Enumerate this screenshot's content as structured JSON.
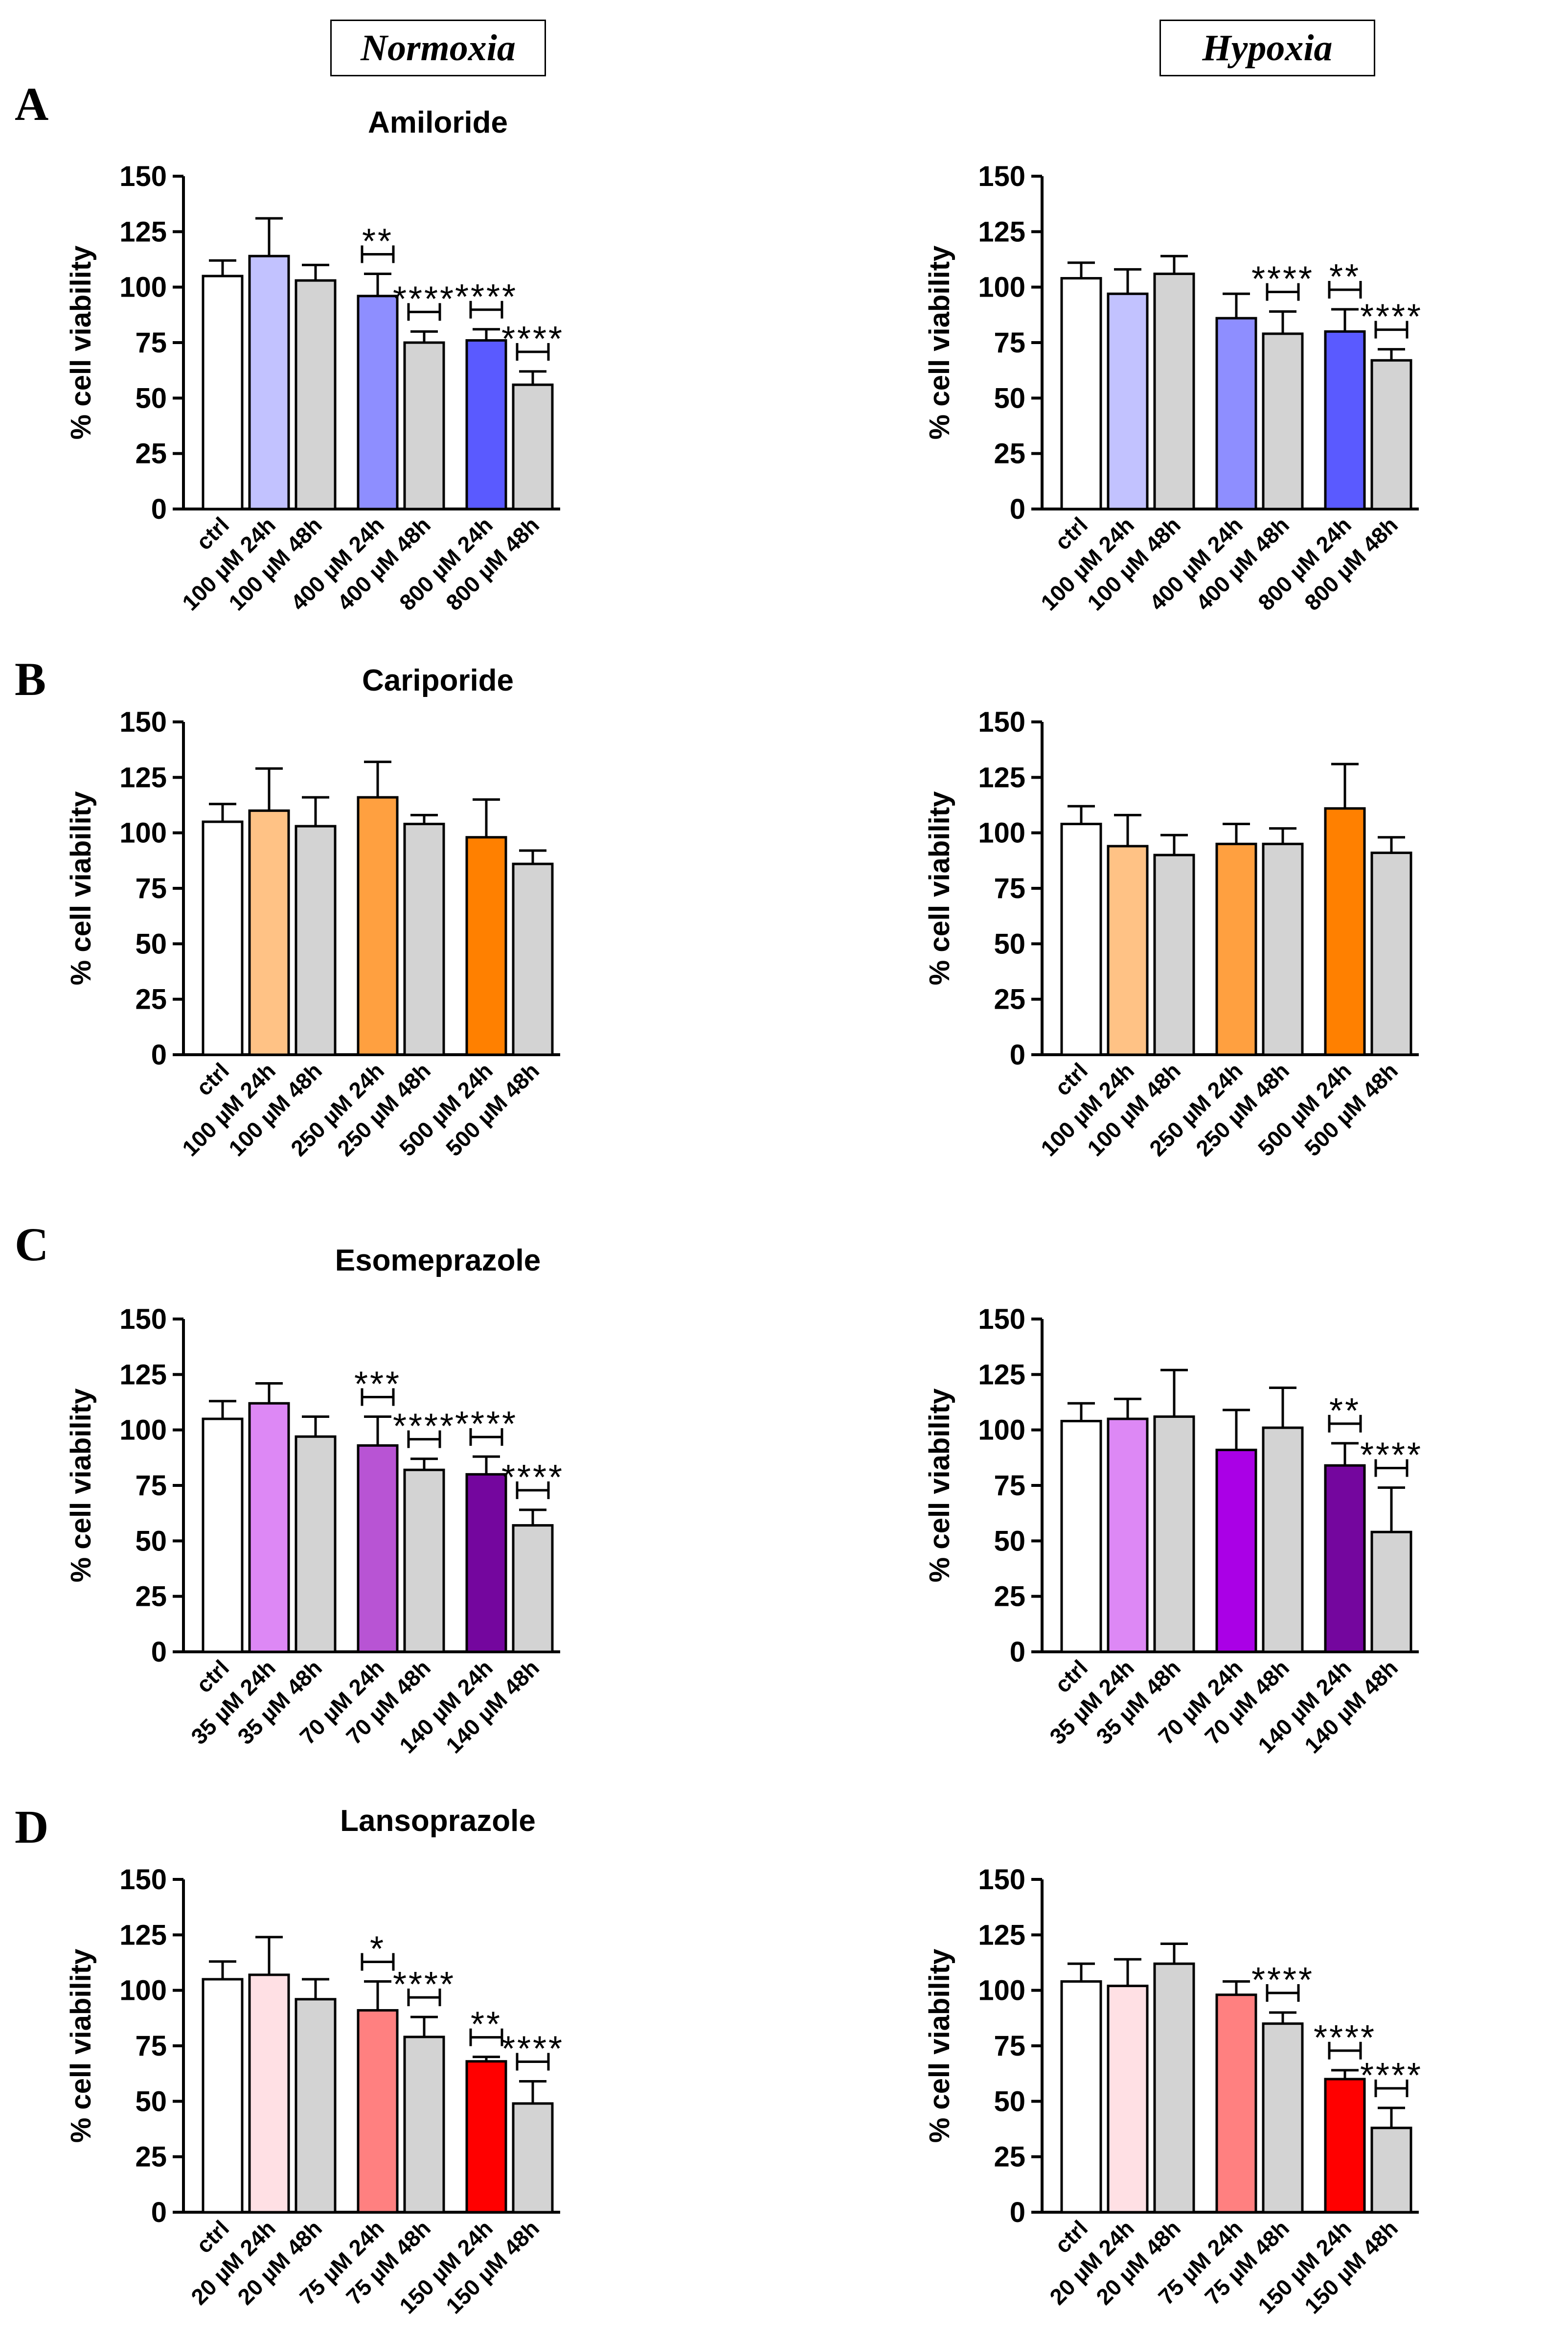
{
  "headers": {
    "normoxia": "Normoxia",
    "hypoxia": "Hypoxia"
  },
  "panels": [
    {
      "letter": "A",
      "title": "Amiloride"
    },
    {
      "letter": "B",
      "title": "Cariporide"
    },
    {
      "letter": "C",
      "title": "Esomeprazole"
    },
    {
      "letter": "D",
      "title": "Lansoprazole"
    }
  ],
  "chart_data": [
    {
      "type": "bar",
      "panel": "A",
      "condition": "Normoxia",
      "title": "Amiloride",
      "ylabel": "% cell viability",
      "ylim": [
        0,
        150
      ],
      "yticks": [
        0,
        25,
        50,
        75,
        100,
        125,
        150
      ],
      "categories": [
        "ctrl",
        "100 µM 24h",
        "100 µM 48h",
        "400 µM 24h",
        "400 µM 48h",
        "800 µM 24h",
        "800 µM 48h"
      ],
      "values": [
        105,
        114,
        103,
        96,
        75,
        76,
        56
      ],
      "errors": [
        7,
        17,
        7,
        10,
        5,
        5,
        6
      ],
      "colors": [
        "#ffffff",
        "#c2c2ff",
        "#d3d3d3",
        "#8e8eff",
        "#d3d3d3",
        "#5a5aff",
        "#d3d3d3"
      ],
      "significance": [
        {
          "bar": 3,
          "label": "**"
        },
        {
          "bar": 4,
          "label": "****"
        },
        {
          "bar": 5,
          "label": "****"
        },
        {
          "bar": 6,
          "label": "****"
        }
      ]
    },
    {
      "type": "bar",
      "panel": "A",
      "condition": "Hypoxia",
      "title": "",
      "ylabel": "% cell viability",
      "ylim": [
        0,
        150
      ],
      "yticks": [
        0,
        25,
        50,
        75,
        100,
        125,
        150
      ],
      "categories": [
        "ctrl",
        "100 µM 24h",
        "100 µM 48h",
        "400 µM 24h",
        "400 µM 48h",
        "800 µM 24h",
        "800 µM 48h"
      ],
      "values": [
        104,
        97,
        106,
        86,
        79,
        80,
        67
      ],
      "errors": [
        7,
        11,
        8,
        11,
        10,
        10,
        5
      ],
      "colors": [
        "#ffffff",
        "#c2c2ff",
        "#d3d3d3",
        "#8e8eff",
        "#d3d3d3",
        "#5a5aff",
        "#d3d3d3"
      ],
      "significance": [
        {
          "bar": 4,
          "label": "****"
        },
        {
          "bar": 5,
          "label": "**"
        },
        {
          "bar": 6,
          "label": "****"
        }
      ]
    },
    {
      "type": "bar",
      "panel": "B",
      "condition": "Normoxia",
      "title": "Cariporide",
      "ylabel": "% cell viability",
      "ylim": [
        0,
        150
      ],
      "yticks": [
        0,
        25,
        50,
        75,
        100,
        125,
        150
      ],
      "categories": [
        "ctrl",
        "100 µM 24h",
        "100 µM 48h",
        "250 µM 24h",
        "250 µM 48h",
        "500 µM 24h",
        "500 µM 48h"
      ],
      "values": [
        105,
        110,
        103,
        116,
        104,
        98,
        86
      ],
      "errors": [
        8,
        19,
        13,
        16,
        4,
        17,
        6
      ],
      "colors": [
        "#ffffff",
        "#ffc285",
        "#d3d3d3",
        "#ffa040",
        "#d3d3d3",
        "#ff8000",
        "#d3d3d3"
      ],
      "significance": []
    },
    {
      "type": "bar",
      "panel": "B",
      "condition": "Hypoxia",
      "title": "",
      "ylabel": "% cell viability",
      "ylim": [
        0,
        150
      ],
      "yticks": [
        0,
        25,
        50,
        75,
        100,
        125,
        150
      ],
      "categories": [
        "ctrl",
        "100 µM 24h",
        "100 µM 48h",
        "250 µM 24h",
        "250 µM 48h",
        "500 µM 24h",
        "500 µM 48h"
      ],
      "values": [
        104,
        94,
        90,
        95,
        95,
        111,
        91
      ],
      "errors": [
        8,
        14,
        9,
        9,
        7,
        20,
        7
      ],
      "colors": [
        "#ffffff",
        "#ffc285",
        "#d3d3d3",
        "#ffa040",
        "#d3d3d3",
        "#ff8000",
        "#d3d3d3"
      ],
      "significance": []
    },
    {
      "type": "bar",
      "panel": "C",
      "condition": "Normoxia",
      "title": "Esomeprazole",
      "ylabel": "% cell viability",
      "ylim": [
        0,
        150
      ],
      "yticks": [
        0,
        25,
        50,
        75,
        100,
        125,
        150
      ],
      "categories": [
        "ctrl",
        "35 µM 24h",
        "35 µM 48h",
        "70 µM 24h",
        "70 µM 48h",
        "140 µM 24h",
        "140 µM 48h"
      ],
      "values": [
        105,
        112,
        97,
        93,
        82,
        80,
        57
      ],
      "errors": [
        8,
        9,
        9,
        13,
        5,
        8,
        7
      ],
      "colors": [
        "#ffffff",
        "#dd88f5",
        "#d3d3d3",
        "#b854d4",
        "#d3d3d3",
        "#74069e",
        "#d3d3d3"
      ],
      "significance": [
        {
          "bar": 3,
          "label": "***"
        },
        {
          "bar": 4,
          "label": "****"
        },
        {
          "bar": 5,
          "label": "****"
        },
        {
          "bar": 6,
          "label": "****"
        }
      ]
    },
    {
      "type": "bar",
      "panel": "C",
      "condition": "Hypoxia",
      "title": "",
      "ylabel": "% cell viability",
      "ylim": [
        0,
        150
      ],
      "yticks": [
        0,
        25,
        50,
        75,
        100,
        125,
        150
      ],
      "categories": [
        "ctrl",
        "35 µM 24h",
        "35 µM 48h",
        "70 µM 24h",
        "70 µM 48h",
        "140 µM 24h",
        "140 µM 48h"
      ],
      "values": [
        104,
        105,
        106,
        91,
        101,
        84,
        54
      ],
      "errors": [
        8,
        9,
        21,
        18,
        18,
        10,
        20
      ],
      "colors": [
        "#ffffff",
        "#dd88f5",
        "#d3d3d3",
        "#aa00e6",
        "#d3d3d3",
        "#74069e",
        "#d3d3d3"
      ],
      "significance": [
        {
          "bar": 5,
          "label": "**"
        },
        {
          "bar": 6,
          "label": "****"
        }
      ]
    },
    {
      "type": "bar",
      "panel": "D",
      "condition": "Normoxia",
      "title": "Lansoprazole",
      "ylabel": "% cell viability",
      "ylim": [
        0,
        150
      ],
      "yticks": [
        0,
        25,
        50,
        75,
        100,
        125,
        150
      ],
      "categories": [
        "ctrl",
        "20 µM 24h",
        "20 µM 48h",
        "75 µM 24h",
        "75 µM 48h",
        "150 µM 24h",
        "150 µM 48h"
      ],
      "values": [
        105,
        107,
        96,
        91,
        79,
        68,
        49
      ],
      "errors": [
        8,
        17,
        9,
        13,
        9,
        2,
        10
      ],
      "colors": [
        "#ffffff",
        "#ffe0e4",
        "#d3d3d3",
        "#ff8080",
        "#d3d3d3",
        "#ff0000",
        "#d3d3d3"
      ],
      "significance": [
        {
          "bar": 3,
          "label": "*"
        },
        {
          "bar": 4,
          "label": "****"
        },
        {
          "bar": 5,
          "label": "**"
        },
        {
          "bar": 6,
          "label": "****"
        }
      ]
    },
    {
      "type": "bar",
      "panel": "D",
      "condition": "Hypoxia",
      "title": "",
      "ylabel": "% cell viability",
      "ylim": [
        0,
        150
      ],
      "yticks": [
        0,
        25,
        50,
        75,
        100,
        125,
        150
      ],
      "categories": [
        "ctrl",
        "20 µM 24h",
        "20 µM 48h",
        "75 µM 24h",
        "75 µM 48h",
        "150 µM 24h",
        "150 µM 48h"
      ],
      "values": [
        104,
        102,
        112,
        98,
        85,
        60,
        38
      ],
      "errors": [
        8,
        12,
        9,
        6,
        5,
        4,
        9
      ],
      "colors": [
        "#ffffff",
        "#ffe0e4",
        "#d3d3d3",
        "#ff8080",
        "#d3d3d3",
        "#ff0000",
        "#d3d3d3"
      ],
      "significance": [
        {
          "bar": 4,
          "label": "****"
        },
        {
          "bar": 5,
          "label": "****"
        },
        {
          "bar": 6,
          "label": "****"
        }
      ]
    }
  ]
}
